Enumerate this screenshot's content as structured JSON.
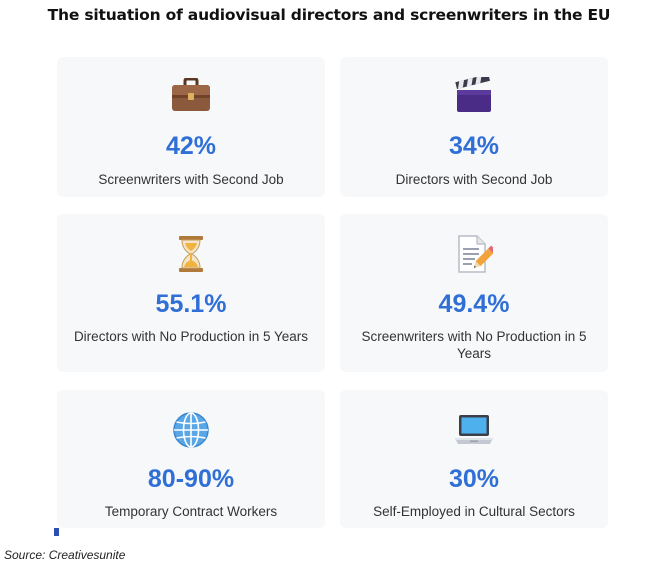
{
  "title": "The situation of audiovisual directors and screenwriters in the EU",
  "cards": [
    {
      "icon": "briefcase-icon",
      "value": "42%",
      "label": "Screenwriters with Second Job"
    },
    {
      "icon": "clapperboard-icon",
      "value": "34%",
      "label": "Directors with Second Job"
    },
    {
      "icon": "hourglass-icon",
      "value": "55.1%",
      "label": "Directors with No Production in 5 Years"
    },
    {
      "icon": "memo-pencil-icon",
      "value": "49.4%",
      "label": "Screenwriters with No Production in 5 Years"
    },
    {
      "icon": "globe-icon",
      "value": "80-90%",
      "label": "Temporary Contract Workers"
    },
    {
      "icon": "laptop-icon",
      "value": "30%",
      "label": "Self-Employed in Cultural Sectors"
    }
  ],
  "source": "Source: Creativesunite",
  "colors": {
    "value_text": "#2f6fd6",
    "card_background": "#f7f8fa",
    "title_text": "#111111"
  }
}
